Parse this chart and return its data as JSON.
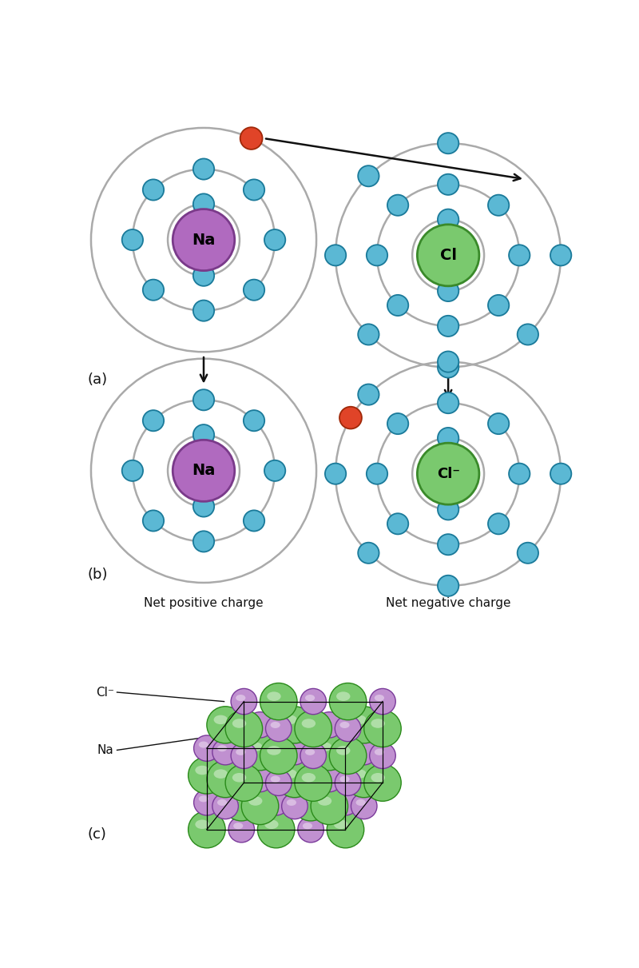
{
  "bg_color": "#ffffff",
  "electron_color": "#5bb8d4",
  "electron_edge": "#1a7a9a",
  "na_color": "#b06abf",
  "na_edge": "#7a3a8a",
  "cl_color": "#7ac96e",
  "cl_edge": "#3a8a2a",
  "red_electron_color": "#e04428",
  "red_electron_edge": "#a02808",
  "orbit_color": "#aaaaaa",
  "orbit_lw": 1.8,
  "arrow_color": "#111111",
  "label_color": "#111111",
  "nacl_green": "#7ac96e",
  "nacl_purple": "#c090d0",
  "panel_a_label": "(a)",
  "panel_b_label": "(b)",
  "panel_c_label": "(c)",
  "net_pos_label": "Net positive charge",
  "net_neg_label": "Net negative charge"
}
